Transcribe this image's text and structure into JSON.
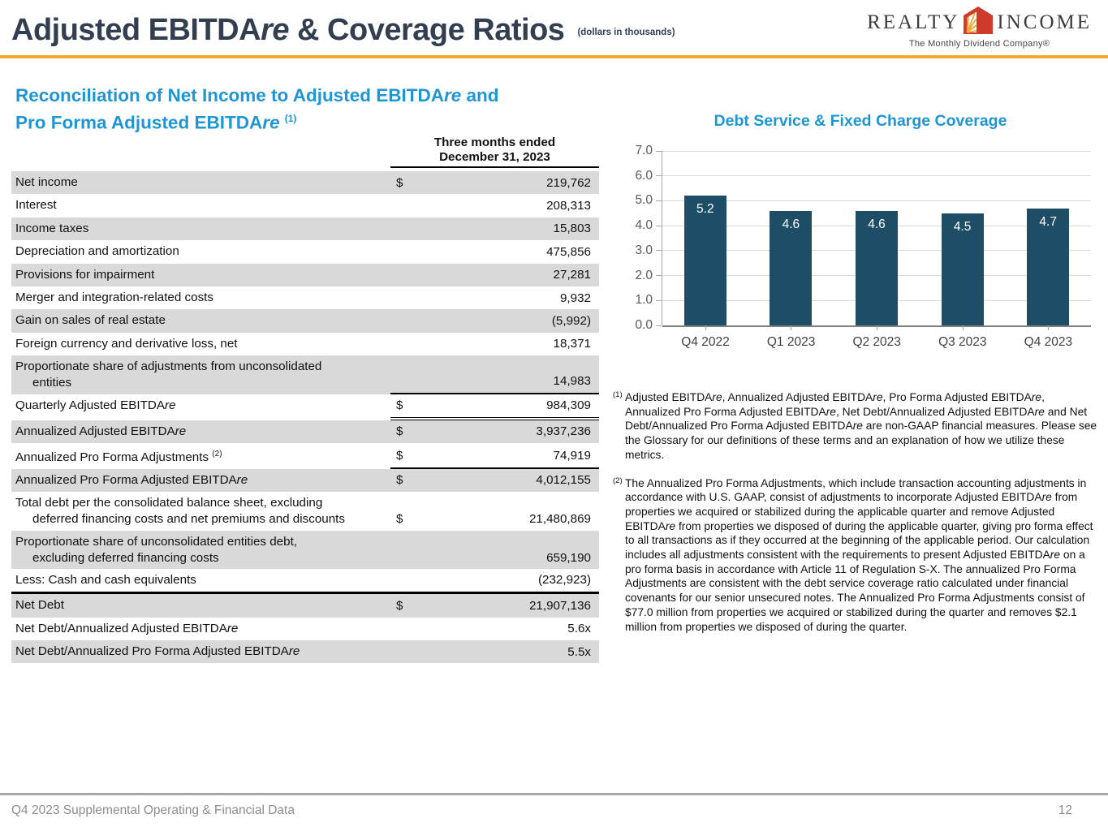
{
  "header": {
    "title_main": "Adjusted EBITDAre & Coverage Ratios",
    "title_note": "(dollars in thousands)",
    "logo": {
      "brand_left": "REALTY",
      "brand_right": "INCOME",
      "tagline": "The Monthly Dividend Company®",
      "icon": "house-sunburst-icon"
    }
  },
  "colors": {
    "accent_orange": "#F5A734",
    "heading_blue": "#2095D3",
    "bar_navy": "#1E4D66",
    "row_gray": "#D9D9D9",
    "title_dark": "#333F50",
    "footer_gray": "#8C8C8C"
  },
  "table_section": {
    "heading_line1": "Reconciliation of Net Income to Adjusted EBITDAre and",
    "heading_line2": "Pro Forma Adjusted EBITDAre",
    "heading_sup": "(1)",
    "col_header_line1": "Three months ended",
    "col_header_line2": "December 31, 2023",
    "rows": [
      {
        "label": "Net income",
        "dollar": "$",
        "value": "219,762",
        "bg": "gray"
      },
      {
        "label": "Interest",
        "value": "208,313",
        "bg": "white"
      },
      {
        "label": "Income taxes",
        "value": "15,803",
        "bg": "gray"
      },
      {
        "label": "Depreciation and amortization",
        "value": "475,856",
        "bg": "white"
      },
      {
        "label": "Provisions for impairment",
        "value": "27,281",
        "bg": "gray"
      },
      {
        "label": "Merger and integration-related costs",
        "value": "9,932",
        "bg": "white"
      },
      {
        "label": "Gain on sales of real estate",
        "value": "(5,992)",
        "bg": "gray"
      },
      {
        "label": "Foreign currency and derivative loss, net",
        "value": "18,371",
        "bg": "white"
      },
      {
        "label": "Proportionate share of adjustments from unconsolidated",
        "label2": "entities",
        "value": "14,983",
        "bg": "gray",
        "rule": "single"
      },
      {
        "label": "Quarterly Adjusted EBITDAre",
        "dollar": "$",
        "value": "984,309",
        "bg": "white",
        "rule": "double"
      },
      {
        "label": "Annualized Adjusted EBITDAre",
        "dollar": "$",
        "value": "3,937,236",
        "bg": "gray"
      },
      {
        "label": "Annualized Pro Forma Adjustments",
        "sup": "(2)",
        "dollar": "$",
        "value": "74,919",
        "bg": "white",
        "rule": "single"
      },
      {
        "label": "Annualized Pro Forma Adjusted EBITDAre",
        "dollar": "$",
        "value": "4,012,155",
        "bg": "gray"
      },
      {
        "label": "Total debt per the consolidated balance sheet, excluding",
        "label2": "deferred financing costs and net premiums and discounts",
        "dollar": "$",
        "value": "21,480,869",
        "bg": "white"
      },
      {
        "label": "Proportionate share of unconsolidated entities debt,",
        "label2": "excluding deferred financing costs",
        "value": "659,190",
        "bg": "gray"
      },
      {
        "label": "Less: Cash and cash equivalents",
        "value": "(232,923)",
        "bg": "white",
        "rule": "rowthick"
      },
      {
        "label": "Net Debt",
        "dollar": "$",
        "value": "21,907,136",
        "bg": "gray"
      },
      {
        "label": "Net Debt/Annualized Adjusted EBITDAre",
        "value": "5.6x",
        "bg": "white"
      },
      {
        "label": "Net Debt/Annualized Pro Forma Adjusted EBITDAre",
        "value": "5.5x",
        "bg": "gray"
      }
    ]
  },
  "chart_data": {
    "type": "bar",
    "title": "Debt Service & Fixed Charge Coverage",
    "categories": [
      "Q4 2022",
      "Q1 2023",
      "Q2 2023",
      "Q3 2023",
      "Q4 2023"
    ],
    "values": [
      5.2,
      4.6,
      4.6,
      4.5,
      4.7
    ],
    "ylim": [
      0,
      7
    ],
    "ytick_step": 1,
    "ytick_labels": [
      "0.0",
      "1.0",
      "2.0",
      "3.0",
      "4.0",
      "5.0",
      "6.0",
      "7.0"
    ],
    "grid": true,
    "legend": "none",
    "bar_color": "#1E4D66",
    "data_label_color": "#FFFFFF"
  },
  "footnotes": [
    {
      "marker": "(1)",
      "text": "Adjusted EBITDAre, Annualized Adjusted EBITDAre, Pro Forma Adjusted EBITDAre, Annualized Pro Forma Adjusted EBITDAre, Net Debt/Annualized Adjusted EBITDAre and Net Debt/Annualized Pro Forma Adjusted EBITDAre are non-GAAP financial measures. Please see the Glossary for our definitions of these terms and an explanation of how we utilize these metrics."
    },
    {
      "marker": "(2)",
      "text": "The Annualized Pro Forma Adjustments, which include transaction accounting adjustments in accordance with U.S. GAAP, consist of adjustments to incorporate Adjusted EBITDAre from properties we acquired or stabilized during the applicable quarter and remove Adjusted EBITDAre from properties we disposed of during the applicable quarter, giving pro forma effect to all transactions as if they occurred at the beginning of the applicable period. Our calculation includes all adjustments consistent with the requirements to present Adjusted EBITDAre on a pro forma basis in accordance with Article 11 of Regulation S-X. The annualized Pro Forma Adjustments are consistent with the debt service coverage ratio calculated under financial covenants for our senior unsecured notes. The Annualized Pro Forma Adjustments consist of $77.0 million from properties we acquired or stabilized during the quarter and removes $2.1 million from properties we disposed of during the quarter."
    }
  ],
  "footer": {
    "left": "Q4 2023 Supplemental Operating & Financial Data",
    "page": "12"
  }
}
